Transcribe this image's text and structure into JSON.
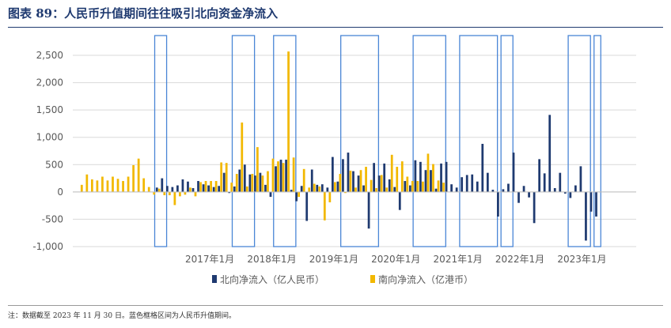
{
  "title": "图表 89：人民币升值期间往往吸引北向资金净流入",
  "footnote": "注：数据截至 2023 年 11 月 30 日。蓝色框格区间为人民币升值期间。",
  "chart_data": {
    "type": "bar",
    "ylim": [
      -1000,
      2500
    ],
    "yticks": [
      -1000,
      -500,
      0,
      500,
      1000,
      1500,
      2000,
      2500
    ],
    "ytick_labels": [
      "-1,000",
      "-500",
      "0",
      "500",
      "1,000",
      "1,500",
      "2,000",
      "2,500"
    ],
    "x_start": "2014-11",
    "x_end": "2023-11",
    "xticks": [
      {
        "month": "2017-01",
        "label": "2017年1月"
      },
      {
        "month": "2018-01",
        "label": "2018年1月"
      },
      {
        "month": "2019-01",
        "label": "2019年1月"
      },
      {
        "month": "2020-01",
        "label": "2020年1月"
      },
      {
        "month": "2021-01",
        "label": "2021年1月"
      },
      {
        "month": "2022-01",
        "label": "2022年1月"
      },
      {
        "month": "2023-01",
        "label": "2023年1月"
      }
    ],
    "appreciation_periods": [
      [
        "2016-03",
        "2016-04"
      ],
      [
        "2017-06",
        "2017-09"
      ],
      [
        "2018-02",
        "2018-05"
      ],
      [
        "2019-03",
        "2019-09"
      ],
      [
        "2020-05",
        "2020-10"
      ],
      [
        "2021-02",
        "2021-08"
      ],
      [
        "2021-10",
        "2021-11"
      ],
      [
        "2022-11",
        "2023-02"
      ],
      [
        "2023-04",
        "2023-04"
      ]
    ],
    "series": [
      {
        "name": "北向净流入（亿人民币）",
        "color": "#1f3a70",
        "values": [
          [
            "2016-03",
            80
          ],
          [
            "2016-04",
            250
          ],
          [
            "2016-05",
            110
          ],
          [
            "2016-06",
            90
          ],
          [
            "2016-07",
            120
          ],
          [
            "2016-08",
            230
          ],
          [
            "2016-09",
            190
          ],
          [
            "2016-10",
            70
          ],
          [
            "2016-11",
            200
          ],
          [
            "2016-12",
            140
          ],
          [
            "2017-01",
            120
          ],
          [
            "2017-02",
            90
          ],
          [
            "2017-03",
            110
          ],
          [
            "2017-04",
            350
          ],
          [
            "2017-05",
            -20
          ],
          [
            "2017-06",
            100
          ],
          [
            "2017-07",
            410
          ],
          [
            "2017-08",
            500
          ],
          [
            "2017-09",
            320
          ],
          [
            "2017-10",
            300
          ],
          [
            "2017-11",
            350
          ],
          [
            "2017-12",
            130
          ],
          [
            "2018-01",
            -90
          ],
          [
            "2018-02",
            470
          ],
          [
            "2018-03",
            590
          ],
          [
            "2018-04",
            590
          ],
          [
            "2018-05",
            40
          ],
          [
            "2018-06",
            -170
          ],
          [
            "2018-07",
            110
          ],
          [
            "2018-08",
            -530
          ],
          [
            "2018-09",
            410
          ],
          [
            "2018-10",
            130
          ],
          [
            "2018-11",
            140
          ],
          [
            "2018-12",
            80
          ],
          [
            "2019-01",
            640
          ],
          [
            "2019-02",
            190
          ],
          [
            "2019-03",
            600
          ],
          [
            "2019-04",
            720
          ],
          [
            "2019-05",
            380
          ],
          [
            "2019-06",
            300
          ],
          [
            "2019-07",
            120
          ],
          [
            "2019-08",
            -670
          ],
          [
            "2019-09",
            530
          ],
          [
            "2019-10",
            300
          ],
          [
            "2019-11",
            520
          ],
          [
            "2019-12",
            230
          ],
          [
            "2020-01",
            90
          ],
          [
            "2020-02",
            -330
          ],
          [
            "2020-03",
            200
          ],
          [
            "2020-04",
            120
          ],
          [
            "2020-05",
            580
          ],
          [
            "2020-06",
            550
          ],
          [
            "2020-07",
            400
          ],
          [
            "2020-08",
            400
          ],
          [
            "2020-09",
            60
          ],
          [
            "2020-10",
            520
          ],
          [
            "2020-11",
            550
          ],
          [
            "2020-12",
            140
          ],
          [
            "2021-01",
            80
          ],
          [
            "2021-02",
            270
          ],
          [
            "2021-03",
            310
          ],
          [
            "2021-04",
            320
          ],
          [
            "2021-05",
            190
          ],
          [
            "2021-06",
            880
          ],
          [
            "2021-07",
            350
          ],
          [
            "2021-08",
            40
          ],
          [
            "2021-09",
            -450
          ],
          [
            "2021-10",
            50
          ],
          [
            "2021-11",
            150
          ],
          [
            "2021-12",
            720
          ],
          [
            "2022-01",
            -200
          ],
          [
            "2022-02",
            110
          ],
          [
            "2022-03",
            -100
          ],
          [
            "2022-04",
            -570
          ],
          [
            "2022-05",
            600
          ],
          [
            "2022-06",
            340
          ],
          [
            "2022-07",
            1410
          ],
          [
            "2022-08",
            70
          ],
          [
            "2022-09",
            350
          ],
          [
            "2022-10",
            -30
          ],
          [
            "2022-11",
            -110
          ],
          [
            "2022-12",
            120
          ],
          [
            "2023-01",
            470
          ],
          [
            "2023-02",
            -890
          ],
          [
            "2023-03",
            -360
          ],
          [
            "2023-04",
            -450
          ]
        ]
      },
      {
        "name": "南向净流入（亿港币）",
        "color": "#f2b800",
        "values": [
          [
            "2014-12",
            130
          ],
          [
            "2015-01",
            320
          ],
          [
            "2015-02",
            230
          ],
          [
            "2015-03",
            210
          ],
          [
            "2015-04",
            280
          ],
          [
            "2015-05",
            210
          ],
          [
            "2015-06",
            280
          ],
          [
            "2015-07",
            240
          ],
          [
            "2015-08",
            200
          ],
          [
            "2015-09",
            280
          ],
          [
            "2015-10",
            490
          ],
          [
            "2015-11",
            610
          ],
          [
            "2015-12",
            250
          ],
          [
            "2016-01",
            90
          ],
          [
            "2016-02",
            -50
          ],
          [
            "2016-03",
            60
          ],
          [
            "2016-04",
            -60
          ],
          [
            "2016-05",
            -60
          ],
          [
            "2016-06",
            -240
          ],
          [
            "2016-07",
            -80
          ],
          [
            "2016-08",
            -50
          ],
          [
            "2016-09",
            80
          ],
          [
            "2016-10",
            -80
          ],
          [
            "2016-11",
            180
          ],
          [
            "2016-12",
            200
          ],
          [
            "2017-01",
            200
          ],
          [
            "2017-02",
            200
          ],
          [
            "2017-03",
            540
          ],
          [
            "2017-04",
            530
          ],
          [
            "2017-05",
            170
          ],
          [
            "2017-06",
            330
          ],
          [
            "2017-07",
            1270
          ],
          [
            "2017-08",
            100
          ],
          [
            "2017-09",
            330
          ],
          [
            "2017-10",
            820
          ],
          [
            "2017-11",
            300
          ],
          [
            "2017-12",
            380
          ],
          [
            "2018-01",
            610
          ],
          [
            "2018-02",
            560
          ],
          [
            "2018-03",
            530
          ],
          [
            "2018-04",
            2570
          ],
          [
            "2018-05",
            630
          ],
          [
            "2018-06",
            -90
          ],
          [
            "2018-07",
            420
          ],
          [
            "2018-08",
            80
          ],
          [
            "2018-09",
            150
          ],
          [
            "2018-10",
            100
          ],
          [
            "2018-11",
            -520
          ],
          [
            "2018-12",
            -190
          ],
          [
            "2019-01",
            180
          ],
          [
            "2019-02",
            330
          ],
          [
            "2019-03",
            -20
          ],
          [
            "2019-04",
            390
          ],
          [
            "2019-05",
            80
          ],
          [
            "2019-06",
            400
          ],
          [
            "2019-07",
            460
          ],
          [
            "2019-08",
            220
          ],
          [
            "2019-09",
            70
          ],
          [
            "2019-10",
            310
          ],
          [
            "2019-11",
            80
          ],
          [
            "2019-12",
            680
          ],
          [
            "2020-01",
            460
          ],
          [
            "2020-02",
            560
          ],
          [
            "2020-03",
            280
          ],
          [
            "2020-04",
            200
          ],
          [
            "2020-05",
            200
          ],
          [
            "2020-06",
            190
          ],
          [
            "2020-07",
            700
          ],
          [
            "2020-08",
            510
          ],
          [
            "2020-09",
            210
          ],
          [
            "2020-10",
            170
          ]
        ]
      }
    ]
  }
}
